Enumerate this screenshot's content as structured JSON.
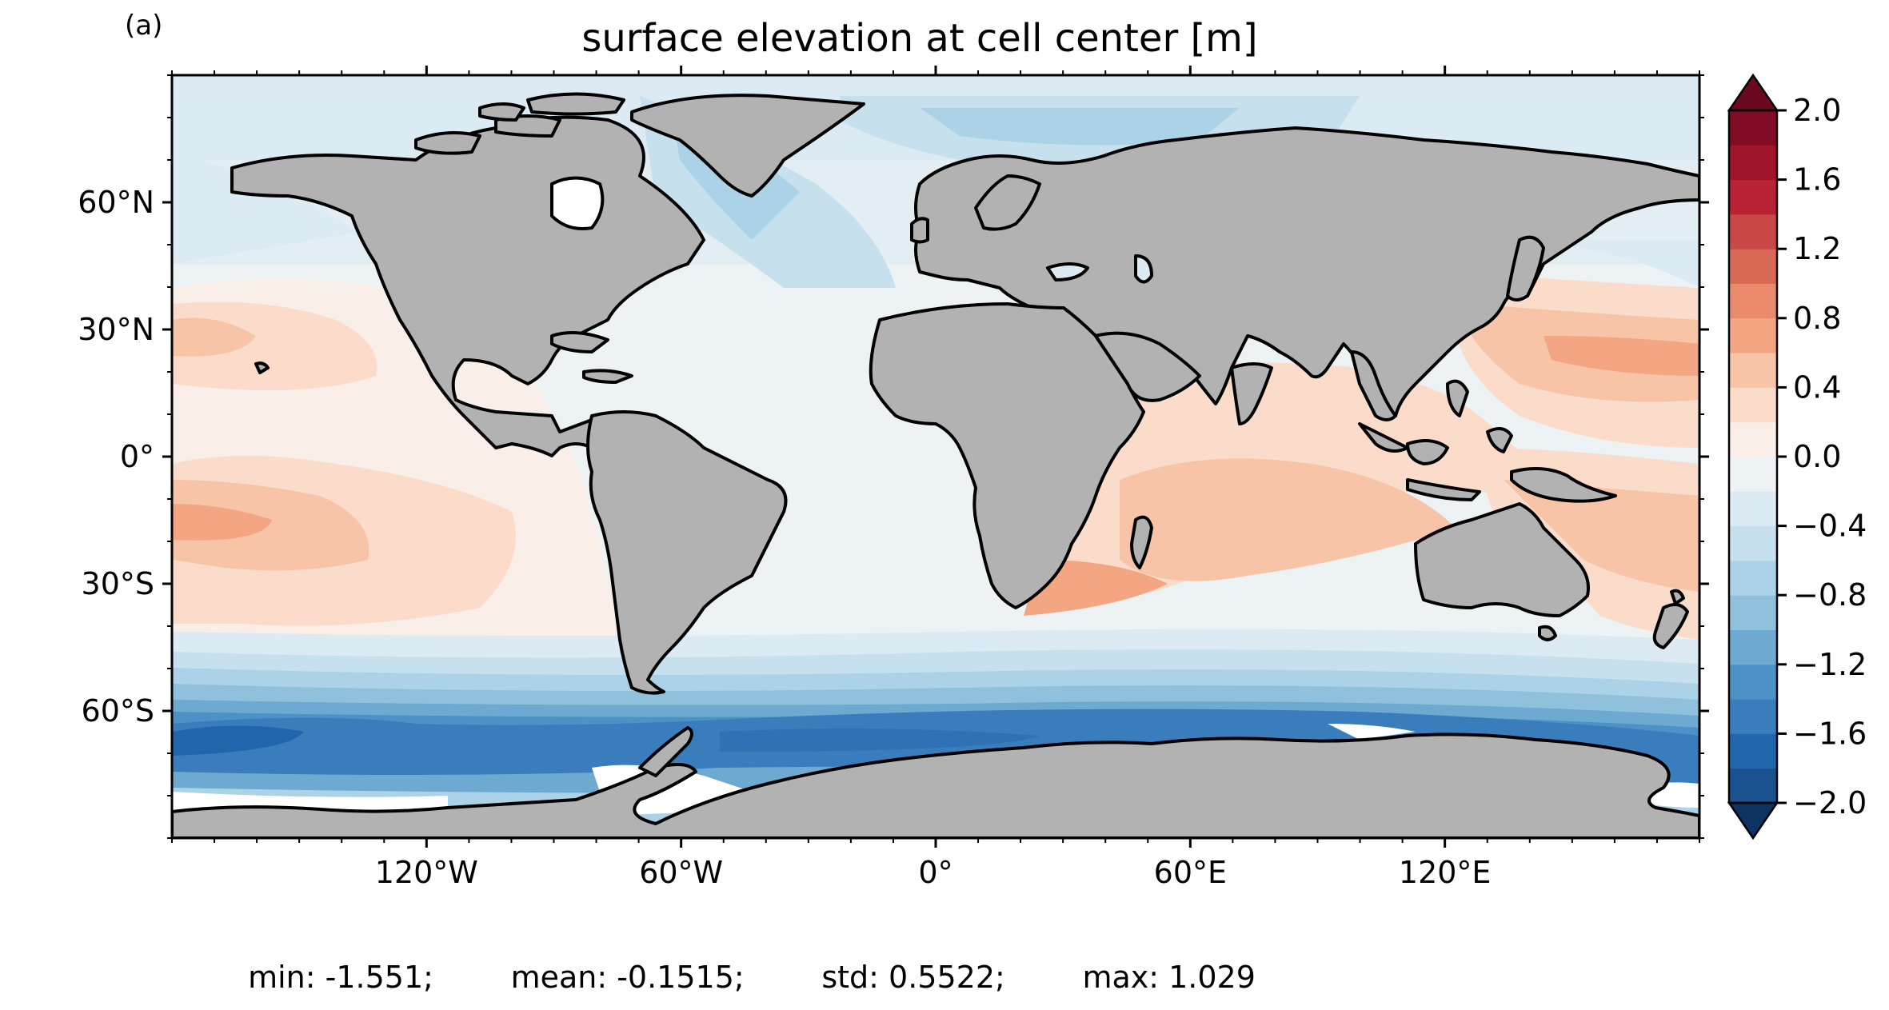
{
  "panel_label": "(a)",
  "title": "surface elevation at cell center [m]",
  "stats": {
    "min": "min: -1.551;",
    "mean": "mean: -0.1515;",
    "std": "std: 0.5522;",
    "max": "max: 1.029"
  },
  "map": {
    "projection": "PlateCarree",
    "extent": [
      -180,
      180,
      -90,
      90
    ],
    "x_ticks": [
      {
        "lon": -120,
        "label": "120°W"
      },
      {
        "lon": -60,
        "label": "60°W"
      },
      {
        "lon": 0,
        "label": "0°"
      },
      {
        "lon": 60,
        "label": "60°E"
      },
      {
        "lon": 120,
        "label": "120°E"
      }
    ],
    "y_ticks": [
      {
        "lat": 60,
        "label": "60°N"
      },
      {
        "lat": 30,
        "label": "30°N"
      },
      {
        "lat": 0,
        "label": "0°"
      },
      {
        "lat": -30,
        "label": "30°S"
      },
      {
        "lat": -60,
        "label": "60°S"
      }
    ],
    "land_color": "#b2b2b2",
    "coastline_color": "#000000"
  },
  "colorbar": {
    "levels": [
      -2.0,
      -1.8,
      -1.6,
      -1.4,
      -1.2,
      -1.0,
      -0.8,
      -0.6,
      -0.4,
      -0.2,
      0.0,
      0.2,
      0.4,
      0.6,
      0.8,
      1.0,
      1.2,
      1.4,
      1.6,
      1.8,
      2.0
    ],
    "colors": [
      "#1a5290",
      "#2166ac",
      "#3a7dbd",
      "#4c92c6",
      "#6da9d1",
      "#8fc1dd",
      "#abd2e6",
      "#c6e0ee",
      "#dcebf3",
      "#edf2f5",
      "#f9eee8",
      "#fbdccb",
      "#f7c4a7",
      "#f4a683",
      "#ea8a6c",
      "#d86a55",
      "#c84747",
      "#b92134",
      "#a1152c",
      "#820b25"
    ],
    "extend_low_color": "#0d3362",
    "extend_high_color": "#6b0a1f",
    "tick_labels": [
      {
        "value": 2.0,
        "label": "2.0"
      },
      {
        "value": 1.6,
        "label": "1.6"
      },
      {
        "value": 1.2,
        "label": "1.2"
      },
      {
        "value": 0.8,
        "label": "0.8"
      },
      {
        "value": 0.4,
        "label": "0.4"
      },
      {
        "value": 0.0,
        "label": "0.0"
      },
      {
        "value": -0.4,
        "label": "−0.4"
      },
      {
        "value": -0.8,
        "label": "−0.8"
      },
      {
        "value": -1.2,
        "label": "−1.2"
      },
      {
        "value": -1.6,
        "label": "−1.6"
      },
      {
        "value": -2.0,
        "label": "−2.0"
      }
    ]
  }
}
